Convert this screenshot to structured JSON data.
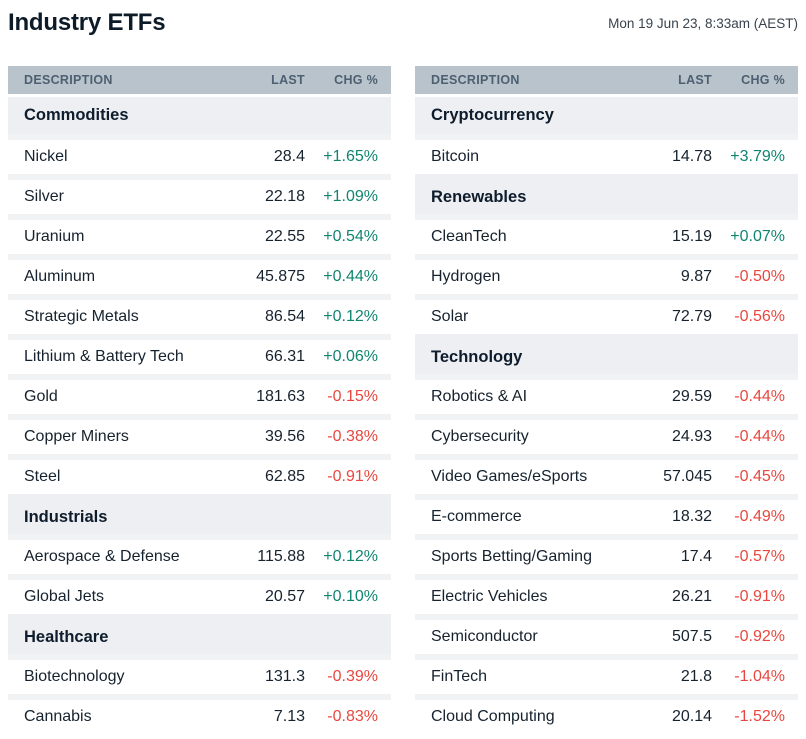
{
  "header": {
    "title": "Industry ETFs",
    "timestamp": "Mon 19 Jun 23, 8:33am (AEST)"
  },
  "table_columns": {
    "description": "DESCRIPTION",
    "last": "LAST",
    "chg": "CHG %"
  },
  "colors": {
    "positive": "#0f8570",
    "negative": "#e8473f",
    "header_bg": "#b8c3cc",
    "header_text": "#4d5f70",
    "category_bg": "#edeff2",
    "row_separator": "#f0f2f4",
    "title_text": "#0d1b29",
    "date_text": "#39434d"
  },
  "tables": [
    {
      "name": "left",
      "rows": [
        {
          "type": "category",
          "label": "Commodities"
        },
        {
          "type": "data",
          "description": "Nickel",
          "last": "28.4",
          "chg": "+1.65%"
        },
        {
          "type": "data",
          "description": "Silver",
          "last": "22.18",
          "chg": "+1.09%"
        },
        {
          "type": "data",
          "description": "Uranium",
          "last": "22.55",
          "chg": "+0.54%"
        },
        {
          "type": "data",
          "description": "Aluminum",
          "last": "45.875",
          "chg": "+0.44%"
        },
        {
          "type": "data",
          "description": "Strategic Metals",
          "last": "86.54",
          "chg": "+0.12%"
        },
        {
          "type": "data",
          "description": "Lithium & Battery Tech",
          "last": "66.31",
          "chg": "+0.06%"
        },
        {
          "type": "data",
          "description": "Gold",
          "last": "181.63",
          "chg": "-0.15%"
        },
        {
          "type": "data",
          "description": "Copper Miners",
          "last": "39.56",
          "chg": "-0.38%"
        },
        {
          "type": "data",
          "description": "Steel",
          "last": "62.85",
          "chg": "-0.91%"
        },
        {
          "type": "category",
          "label": "Industrials"
        },
        {
          "type": "data",
          "description": "Aerospace & Defense",
          "last": "115.88",
          "chg": "+0.12%"
        },
        {
          "type": "data",
          "description": "Global Jets",
          "last": "20.57",
          "chg": "+0.10%"
        },
        {
          "type": "category",
          "label": "Healthcare"
        },
        {
          "type": "data",
          "description": "Biotechnology",
          "last": "131.3",
          "chg": "-0.39%"
        },
        {
          "type": "data",
          "description": "Cannabis",
          "last": "7.13",
          "chg": "-0.83%"
        }
      ]
    },
    {
      "name": "right",
      "rows": [
        {
          "type": "category",
          "label": "Cryptocurrency"
        },
        {
          "type": "data",
          "description": "Bitcoin",
          "last": "14.78",
          "chg": "+3.79%"
        },
        {
          "type": "category",
          "label": "Renewables"
        },
        {
          "type": "data",
          "description": "CleanTech",
          "last": "15.19",
          "chg": "+0.07%"
        },
        {
          "type": "data",
          "description": "Hydrogen",
          "last": "9.87",
          "chg": "-0.50%"
        },
        {
          "type": "data",
          "description": "Solar",
          "last": "72.79",
          "chg": "-0.56%"
        },
        {
          "type": "category",
          "label": "Technology"
        },
        {
          "type": "data",
          "description": "Robotics & AI",
          "last": "29.59",
          "chg": "-0.44%"
        },
        {
          "type": "data",
          "description": "Cybersecurity",
          "last": "24.93",
          "chg": "-0.44%"
        },
        {
          "type": "data",
          "description": "Video Games/eSports",
          "last": "57.045",
          "chg": "-0.45%"
        },
        {
          "type": "data",
          "description": "E-commerce",
          "last": "18.32",
          "chg": "-0.49%"
        },
        {
          "type": "data",
          "description": "Sports Betting/Gaming",
          "last": "17.4",
          "chg": "-0.57%"
        },
        {
          "type": "data",
          "description": "Electric Vehicles",
          "last": "26.21",
          "chg": "-0.91%"
        },
        {
          "type": "data",
          "description": "Semiconductor",
          "last": "507.5",
          "chg": "-0.92%"
        },
        {
          "type": "data",
          "description": "FinTech",
          "last": "21.8",
          "chg": "-1.04%"
        },
        {
          "type": "data",
          "description": "Cloud Computing",
          "last": "20.14",
          "chg": "-1.52%"
        }
      ]
    }
  ]
}
